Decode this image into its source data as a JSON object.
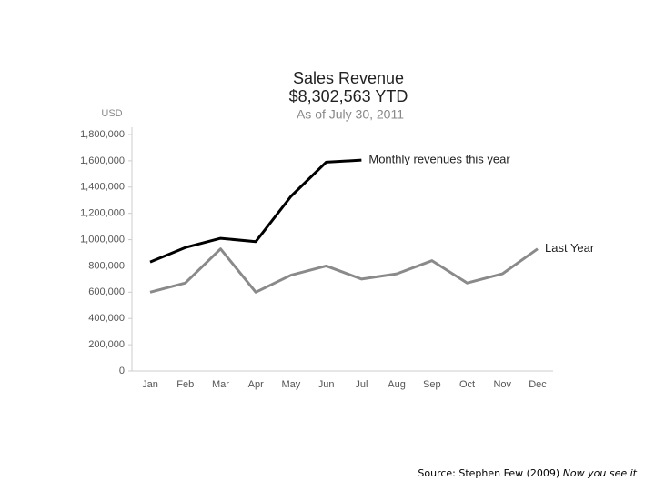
{
  "chart_data": {
    "type": "line",
    "title": "Sales Revenue",
    "subtitle": "$8,302,563 YTD",
    "subtitle2": "As of July 30, 2011",
    "y_label": "USD",
    "categories": [
      "Jan",
      "Feb",
      "Mar",
      "Apr",
      "May",
      "Jun",
      "Jul",
      "Aug",
      "Sep",
      "Oct",
      "Nov",
      "Dec"
    ],
    "series": [
      {
        "name": "Monthly revenues this year",
        "color": "#000000",
        "values": [
          830000,
          940000,
          1010000,
          985000,
          1330000,
          1590000,
          1605000,
          null,
          null,
          null,
          null,
          null
        ]
      },
      {
        "name": "Last Year",
        "color": "#8a8a8a",
        "values": [
          600000,
          670000,
          930000,
          600000,
          730000,
          800000,
          700000,
          740000,
          840000,
          670000,
          740000,
          930000
        ]
      }
    ],
    "ylim": [
      0,
      1800000
    ],
    "yticks": [
      0,
      {
        "value": 200000,
        "label": "200,000"
      },
      {
        "value": 400000,
        "label": "400,000"
      },
      {
        "value": 600000,
        "label": "600,000"
      },
      {
        "value": 800000,
        "label": "800,000"
      },
      {
        "value": 1000000,
        "label": "1,000,000"
      },
      {
        "value": 1200000,
        "label": "1,200,000"
      },
      {
        "value": 1400000,
        "label": "1,400,000"
      },
      {
        "value": 1600000,
        "label": "1,600,000"
      },
      {
        "value": 1800000,
        "label": "1,800,000"
      }
    ],
    "grid": false
  },
  "source": {
    "text": "Source: Stephen Few (2009)",
    "italic": "Now you see it"
  }
}
